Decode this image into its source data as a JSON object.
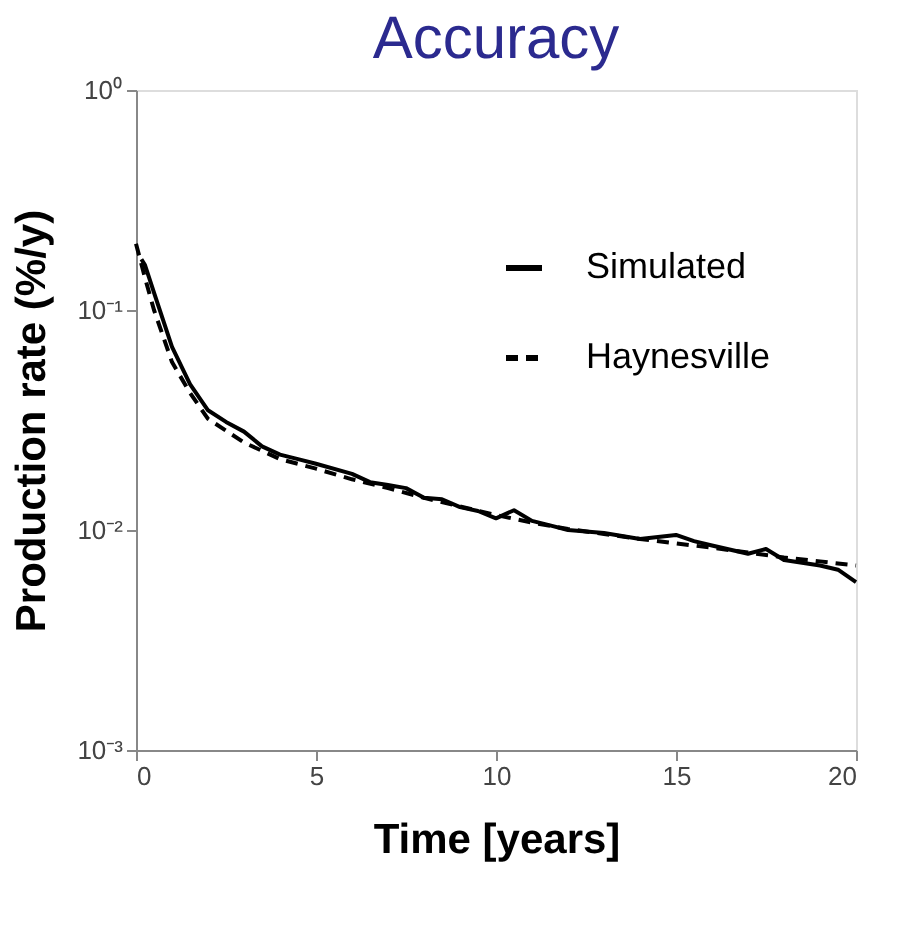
{
  "chart_data": {
    "type": "line",
    "title": "Accuracy",
    "xlabel": "Time [years]",
    "ylabel": "Production rate (%/y)",
    "log": "y",
    "xlim": [
      0,
      20
    ],
    "xticks": [
      0,
      5,
      10,
      15,
      20
    ],
    "ylim": [
      0.001,
      1
    ],
    "yticks": [
      {
        "value": 0.001,
        "label": "10⁻³"
      },
      {
        "value": 0.01,
        "label": "10⁻²"
      },
      {
        "value": 0.1,
        "label": "10⁻¹"
      },
      {
        "value": 1,
        "label": "10⁰"
      }
    ],
    "grid": false,
    "legend": "top right",
    "series": [
      {
        "name": "Simulated",
        "color": "#000000",
        "line_style": "solid",
        "x": [
          0.15,
          0.25,
          0.5,
          1,
          1.5,
          2,
          2.5,
          3,
          3.5,
          4,
          4.5,
          5,
          6,
          6.5,
          7,
          7.5,
          8,
          8.5,
          9,
          9.5,
          10,
          10.5,
          11,
          11.5,
          12,
          13,
          14,
          15,
          15.5,
          16,
          17,
          17.5,
          18,
          19,
          19.5,
          20
        ],
        "values": [
          0.17,
          0.16,
          0.12,
          0.068,
          0.046,
          0.035,
          0.031,
          0.028,
          0.024,
          0.022,
          0.021,
          0.02,
          0.018,
          0.0165,
          0.016,
          0.0155,
          0.014,
          0.0138,
          0.0127,
          0.0122,
          0.0113,
          0.0123,
          0.011,
          0.0105,
          0.01,
          0.0097,
          0.0091,
          0.0095,
          0.0089,
          0.0085,
          0.0078,
          0.0082,
          0.0073,
          0.0069,
          0.0066,
          0.0058
        ]
      },
      {
        "name": "Haynesville",
        "color": "#000000",
        "line_style": "dashed",
        "x": [
          0,
          0.25,
          0.5,
          1,
          1.5,
          2,
          3,
          4,
          5,
          6,
          7,
          8,
          9,
          10,
          11,
          12,
          13,
          14,
          15,
          16,
          17,
          18,
          19,
          20
        ],
        "values": [
          0.2,
          0.14,
          0.1,
          0.058,
          0.042,
          0.032,
          0.025,
          0.021,
          0.019,
          0.017,
          0.0155,
          0.014,
          0.0128,
          0.0117,
          0.0108,
          0.0101,
          0.0096,
          0.0091,
          0.0087,
          0.0083,
          0.0079,
          0.0075,
          0.0072,
          0.0069
        ]
      }
    ]
  }
}
